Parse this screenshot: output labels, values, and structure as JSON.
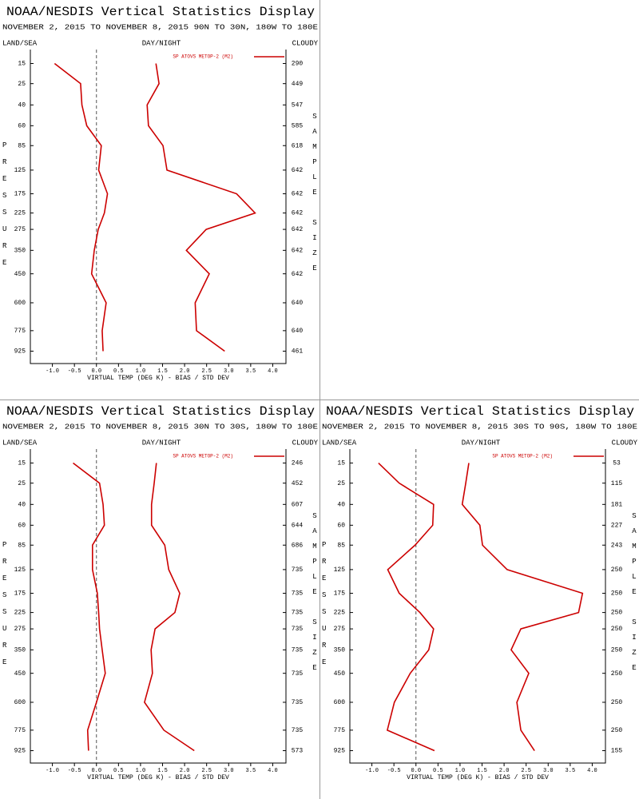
{
  "chart_data": [
    {
      "type": "line",
      "title": "NOAA/NESDIS Vertical Statistics Display",
      "subtitle": "NOVEMBER 2, 2015 TO NOVEMBER 8, 2015  90N TO 30N, 180W TO 180E",
      "left_label": "LAND/SEA",
      "center_label": "DAY/NIGHT",
      "right_label": "CLOUDY",
      "ylabel": "PRESSURE",
      "y2label": "SAMPLE SIZE",
      "xlabel": "VIRTUAL TEMP (DEG K) - BIAS / STD DEV",
      "y": [
        15,
        25,
        40,
        60,
        85,
        125,
        175,
        225,
        275,
        350,
        450,
        600,
        775,
        925
      ],
      "sample_size": [
        290,
        449,
        547,
        585,
        618,
        642,
        642,
        642,
        642,
        642,
        642,
        640,
        640,
        461
      ],
      "ylim": [
        10,
        1025
      ],
      "xlim": [
        -1.5,
        4.3
      ],
      "xticks": [
        {
          "value": -1,
          "label": "-1.0"
        },
        -0.5,
        {
          "value": 0,
          "label": "0.0"
        },
        0.5,
        {
          "value": 1,
          "label": "1.0"
        },
        1.5,
        {
          "value": 2,
          "label": "2.0"
        },
        2.5,
        {
          "value": 3,
          "label": "3.0"
        },
        3.5,
        {
          "value": 4,
          "label": "4.0"
        }
      ],
      "series": [
        {
          "name": "SP ATOVS METOP-2 (M2)",
          "color": "#cc0000",
          "values": [
            -0.95,
            -0.36,
            -0.33,
            -0.22,
            0.11,
            0.05,
            0.25,
            0.18,
            0.04,
            -0.05,
            -0.11,
            0.22,
            0.13,
            0.15
          ]
        },
        {
          "color": "#cc0000",
          "values": [
            1.35,
            1.42,
            1.15,
            1.18,
            1.51,
            1.6,
            3.18,
            3.6,
            2.49,
            2.04,
            2.56,
            2.24,
            2.27,
            2.91
          ]
        }
      ]
    },
    {
      "type": "line",
      "title": "NOAA/NESDIS Vertical Statistics Display",
      "subtitle": "NOVEMBER 2, 2015 TO NOVEMBER 8, 2015  30N TO 30S, 180W TO 180E",
      "left_label": "LAND/SEA",
      "center_label": "DAY/NIGHT",
      "right_label": "CLOUDY",
      "ylabel": "PRESSURE",
      "y2label": "SAMPLE SIZE",
      "xlabel": "VIRTUAL TEMP (DEG K) - BIAS / STD DEV",
      "y": [
        15,
        25,
        40,
        60,
        85,
        125,
        175,
        225,
        275,
        350,
        450,
        600,
        775,
        925
      ],
      "sample_size": [
        246,
        452,
        607,
        644,
        686,
        735,
        735,
        735,
        735,
        735,
        735,
        735,
        735,
        573
      ],
      "ylim": [
        10,
        1025
      ],
      "xlim": [
        -1.5,
        4.3
      ],
      "xticks": [
        {
          "value": -1,
          "label": "-1.0"
        },
        -0.5,
        {
          "value": 0,
          "label": "0.0"
        },
        0.5,
        {
          "value": 1,
          "label": "1.0"
        },
        1.5,
        {
          "value": 2,
          "label": "2.0"
        },
        2.5,
        {
          "value": 3,
          "label": "3.0"
        },
        3.5,
        {
          "value": 4,
          "label": "4.0"
        }
      ],
      "series": [
        {
          "name": "SP ATOVS METOP-2 (M2)",
          "color": "#cc0000",
          "values": [
            -0.53,
            0.07,
            0.15,
            0.18,
            -0.09,
            -0.09,
            0.02,
            0.05,
            0.07,
            0.13,
            0.2,
            0,
            -0.2,
            -0.18
          ]
        },
        {
          "color": "#cc0000",
          "values": [
            1.36,
            1.31,
            1.25,
            1.25,
            1.55,
            1.64,
            1.89,
            1.78,
            1.33,
            1.24,
            1.27,
            1.09,
            1.53,
            2.22
          ]
        }
      ]
    },
    {
      "type": "line",
      "title": "NOAA/NESDIS Vertical Statistics Display",
      "subtitle": "NOVEMBER 2, 2015 TO NOVEMBER 8, 2015  30S TO 90S, 180W TO 180E",
      "left_label": "LAND/SEA",
      "center_label": "DAY/NIGHT",
      "right_label": "CLOUDY",
      "ylabel": "PRESSURE",
      "y2label": "SAMPLE SIZE",
      "xlabel": "VIRTUAL TEMP (DEG K) - BIAS / STD DEV",
      "y": [
        15,
        25,
        40,
        60,
        85,
        125,
        175,
        225,
        275,
        350,
        450,
        600,
        775,
        925
      ],
      "sample_size": [
        53,
        115,
        181,
        227,
        243,
        250,
        250,
        250,
        250,
        250,
        250,
        250,
        250,
        155
      ],
      "ylim": [
        10,
        1025
      ],
      "xlim": [
        -1.5,
        4.3
      ],
      "xticks": [
        {
          "value": -1,
          "label": "-1.0"
        },
        -0.5,
        {
          "value": 0,
          "label": "0.0"
        },
        0.5,
        {
          "value": 1,
          "label": "1.0"
        },
        1.5,
        {
          "value": 2,
          "label": "2.0"
        },
        2.5,
        {
          "value": 3,
          "label": "3.0"
        },
        3.5,
        {
          "value": 4,
          "label": "4.0"
        }
      ],
      "series": [
        {
          "name": "SP ATOVS METOP-2 (M2)",
          "color": "#cc0000",
          "values": [
            -0.85,
            -0.38,
            0.4,
            0.38,
            -0.02,
            -0.64,
            -0.38,
            0.09,
            0.4,
            0.29,
            -0.13,
            -0.49,
            -0.65,
            0.42
          ]
        },
        {
          "color": "#cc0000",
          "values": [
            1.2,
            1.13,
            1.05,
            1.45,
            1.51,
            2.07,
            3.78,
            3.69,
            2.38,
            2.16,
            2.56,
            2.29,
            2.38,
            2.69
          ]
        }
      ]
    }
  ]
}
